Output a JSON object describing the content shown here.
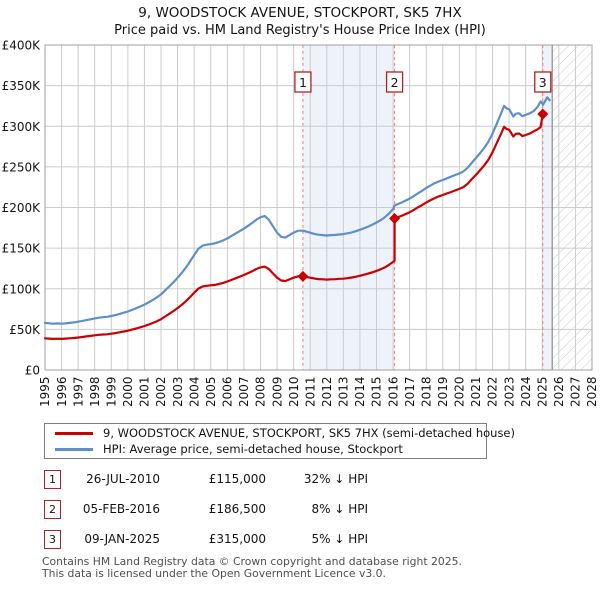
{
  "title": "9, WOODSTOCK AVENUE, STOCKPORT, SK5 7HX",
  "subtitle": "Price paid vs. HM Land Registry's House Price Index (HPI)",
  "chart_data": {
    "type": "line",
    "title": "9, WOODSTOCK AVENUE, STOCKPORT, SK5 7HX",
    "subtitle": "Price paid vs. HM Land Registry's House Price Index (HPI)",
    "x_axis": {
      "min": 1995,
      "max": 2028,
      "ticks": [
        1995,
        1996,
        1997,
        1998,
        1999,
        2000,
        2001,
        2002,
        2003,
        2004,
        2005,
        2006,
        2007,
        2008,
        2009,
        2010,
        2011,
        2012,
        2013,
        2014,
        2015,
        2016,
        2017,
        2018,
        2019,
        2020,
        2021,
        2022,
        2023,
        2024,
        2025,
        2026,
        2027,
        2028
      ]
    },
    "y_axis": {
      "min": 0,
      "max": 400,
      "step": 50,
      "unit": "GBP thousands",
      "tick_labels": [
        "£0",
        "£50K",
        "£100K",
        "£150K",
        "£200K",
        "£250K",
        "£300K",
        "£350K",
        "£400K"
      ]
    },
    "grid": true,
    "legend_position": "bottom",
    "colors": {
      "grid": "#cccccc",
      "frame": "#a0a0a0",
      "band": "#eef2fa",
      "marker_line": "#f08080",
      "hatch": "#cccccc",
      "hatch_edge": "#8a8a8a",
      "marker_box_border": "#b22222",
      "marker_fill": "#cc0000"
    },
    "series": [
      {
        "name": "9, WOODSTOCK AVENUE, STOCKPORT, SK5 7HX (semi-detached house)",
        "color": "#cc0000",
        "points": [
          [
            1995,
            39
          ],
          [
            1995.25,
            38.7
          ],
          [
            1995.5,
            38.3
          ],
          [
            1995.75,
            38.5
          ],
          [
            1996,
            38.3
          ],
          [
            1996.25,
            38.6
          ],
          [
            1996.5,
            39
          ],
          [
            1996.75,
            39.4
          ],
          [
            1997,
            40
          ],
          [
            1997.25,
            40.6
          ],
          [
            1997.5,
            41.3
          ],
          [
            1997.75,
            42
          ],
          [
            1998,
            42.7
          ],
          [
            1998.25,
            43.3
          ],
          [
            1998.5,
            43.7
          ],
          [
            1998.75,
            44
          ],
          [
            1999,
            44.7
          ],
          [
            1999.25,
            45.4
          ],
          [
            1999.5,
            46.4
          ],
          [
            1999.75,
            47.4
          ],
          [
            2000,
            48.4
          ],
          [
            2000.25,
            49.7
          ],
          [
            2000.5,
            51.1
          ],
          [
            2000.75,
            52.6
          ],
          [
            2001,
            54.1
          ],
          [
            2001.25,
            55.9
          ],
          [
            2001.5,
            57.9
          ],
          [
            2001.75,
            60.1
          ],
          [
            2002,
            62.5
          ],
          [
            2002.25,
            65.9
          ],
          [
            2002.5,
            69.2
          ],
          [
            2002.75,
            72.6
          ],
          [
            2003,
            76.3
          ],
          [
            2003.25,
            80.3
          ],
          [
            2003.5,
            84.7
          ],
          [
            2003.75,
            89.7
          ],
          [
            2004,
            95.1
          ],
          [
            2004.25,
            100.1
          ],
          [
            2004.5,
            102.8
          ],
          [
            2004.75,
            103.6
          ],
          [
            2005,
            104.2
          ],
          [
            2005.25,
            104.8
          ],
          [
            2005.5,
            105.8
          ],
          [
            2005.75,
            107.2
          ],
          [
            2006,
            108.9
          ],
          [
            2006.25,
            110.9
          ],
          [
            2006.5,
            112.9
          ],
          [
            2006.75,
            114.9
          ],
          [
            2007,
            116.9
          ],
          [
            2007.25,
            119.3
          ],
          [
            2007.5,
            121.6
          ],
          [
            2007.75,
            124.3
          ],
          [
            2008,
            126.3
          ],
          [
            2008.25,
            127.3
          ],
          [
            2008.5,
            124.3
          ],
          [
            2008.75,
            118.9
          ],
          [
            2009,
            113.6
          ],
          [
            2009.25,
            110.2
          ],
          [
            2009.5,
            109.5
          ],
          [
            2009.75,
            111.5
          ],
          [
            2010,
            113.6
          ],
          [
            2010.25,
            115.2
          ],
          [
            2010.56,
            115.3
          ],
          [
            2010.75,
            114.6
          ],
          [
            2011,
            113.6
          ],
          [
            2011.25,
            112.6
          ],
          [
            2011.5,
            111.9
          ],
          [
            2011.75,
            111.6
          ],
          [
            2012,
            111.2
          ],
          [
            2012.25,
            111.6
          ],
          [
            2012.5,
            111.8
          ],
          [
            2012.75,
            112.2
          ],
          [
            2013,
            112.4
          ],
          [
            2013.25,
            113
          ],
          [
            2013.5,
            113.8
          ],
          [
            2013.75,
            114.8
          ],
          [
            2014,
            115.9
          ],
          [
            2014.25,
            117.3
          ],
          [
            2014.5,
            118.6
          ],
          [
            2014.75,
            120.3
          ],
          [
            2015,
            122
          ],
          [
            2015.25,
            124
          ],
          [
            2015.5,
            126.3
          ],
          [
            2015.75,
            129.4
          ],
          [
            2016,
            133.1
          ],
          [
            2016.09,
            134.7
          ],
          [
            2016.09,
            186.5
          ],
          [
            2016.25,
            187.8
          ],
          [
            2016.5,
            189.6
          ],
          [
            2016.75,
            191.9
          ],
          [
            2017,
            194.2
          ],
          [
            2017.25,
            197
          ],
          [
            2017.5,
            200.2
          ],
          [
            2017.75,
            203
          ],
          [
            2018,
            206.2
          ],
          [
            2018.25,
            209
          ],
          [
            2018.5,
            211.5
          ],
          [
            2018.75,
            213.6
          ],
          [
            2019,
            215.4
          ],
          [
            2019.25,
            217.3
          ],
          [
            2019.5,
            219.1
          ],
          [
            2019.75,
            221
          ],
          [
            2020,
            222.9
          ],
          [
            2020.25,
            225.2
          ],
          [
            2020.5,
            229.3
          ],
          [
            2020.75,
            234.9
          ],
          [
            2021,
            240.4
          ],
          [
            2021.25,
            245.9
          ],
          [
            2021.5,
            251.9
          ],
          [
            2021.75,
            258.8
          ],
          [
            2022,
            268
          ],
          [
            2022.25,
            279.1
          ],
          [
            2022.5,
            290.1
          ],
          [
            2022.7,
            299.3
          ],
          [
            2022.85,
            296.6
          ],
          [
            2023,
            295.7
          ],
          [
            2023.25,
            287.4
          ],
          [
            2023.4,
            290.6
          ],
          [
            2023.6,
            291.1
          ],
          [
            2023.8,
            287.9
          ],
          [
            2024,
            289.2
          ],
          [
            2024.25,
            291.1
          ],
          [
            2024.5,
            293.9
          ],
          [
            2024.7,
            296
          ],
          [
            2024.9,
            299
          ],
          [
            2025.03,
            315
          ],
          [
            2025.2,
            316.5
          ]
        ]
      },
      {
        "name": "HPI: Average price, semi-detached house, Stockport",
        "color": "#5e8fc9",
        "points": [
          [
            1995,
            58
          ],
          [
            1995.25,
            57.5
          ],
          [
            1995.5,
            57
          ],
          [
            1995.75,
            57.3
          ],
          [
            1996,
            57
          ],
          [
            1996.25,
            57.4
          ],
          [
            1996.5,
            58
          ],
          [
            1996.75,
            58.6
          ],
          [
            1997,
            59.5
          ],
          [
            1997.25,
            60.4
          ],
          [
            1997.5,
            61.4
          ],
          [
            1997.75,
            62.4
          ],
          [
            1998,
            63.5
          ],
          [
            1998.25,
            64.4
          ],
          [
            1998.5,
            65
          ],
          [
            1998.75,
            65.5
          ],
          [
            1999,
            66.5
          ],
          [
            1999.25,
            67.6
          ],
          [
            1999.5,
            69
          ],
          [
            1999.75,
            70.5
          ],
          [
            2000,
            72
          ],
          [
            2000.25,
            74
          ],
          [
            2000.5,
            76
          ],
          [
            2000.75,
            78.2
          ],
          [
            2001,
            80.5
          ],
          [
            2001.25,
            83.2
          ],
          [
            2001.5,
            86.2
          ],
          [
            2001.75,
            89.5
          ],
          [
            2002,
            93
          ],
          [
            2002.25,
            98
          ],
          [
            2002.5,
            103
          ],
          [
            2002.75,
            108
          ],
          [
            2003,
            113.5
          ],
          [
            2003.25,
            119.5
          ],
          [
            2003.5,
            126
          ],
          [
            2003.75,
            133.5
          ],
          [
            2004,
            141.5
          ],
          [
            2004.25,
            149
          ],
          [
            2004.5,
            153
          ],
          [
            2004.75,
            154.2
          ],
          [
            2005,
            155
          ],
          [
            2005.25,
            156
          ],
          [
            2005.5,
            157.5
          ],
          [
            2005.75,
            159.5
          ],
          [
            2006,
            162
          ],
          [
            2006.25,
            165
          ],
          [
            2006.5,
            168
          ],
          [
            2006.75,
            171
          ],
          [
            2007,
            174
          ],
          [
            2007.25,
            177.5
          ],
          [
            2007.5,
            181
          ],
          [
            2007.75,
            185
          ],
          [
            2008,
            188
          ],
          [
            2008.25,
            189.5
          ],
          [
            2008.5,
            185
          ],
          [
            2008.75,
            177
          ],
          [
            2009,
            169
          ],
          [
            2009.25,
            164
          ],
          [
            2009.5,
            163
          ],
          [
            2009.75,
            166
          ],
          [
            2010,
            169
          ],
          [
            2010.25,
            171.5
          ],
          [
            2010.56,
            171.5
          ],
          [
            2010.75,
            170.5
          ],
          [
            2011,
            169
          ],
          [
            2011.25,
            167.5
          ],
          [
            2011.5,
            166.5
          ],
          [
            2011.75,
            166
          ],
          [
            2012,
            165.5
          ],
          [
            2012.25,
            166
          ],
          [
            2012.5,
            166.3
          ],
          [
            2012.75,
            166.8
          ],
          [
            2013,
            167.3
          ],
          [
            2013.25,
            168.2
          ],
          [
            2013.5,
            169.3
          ],
          [
            2013.75,
            170.8
          ],
          [
            2014,
            172.5
          ],
          [
            2014.25,
            174.5
          ],
          [
            2014.5,
            176.5
          ],
          [
            2014.75,
            179
          ],
          [
            2015,
            181.5
          ],
          [
            2015.25,
            184.5
          ],
          [
            2015.5,
            188
          ],
          [
            2015.75,
            192.5
          ],
          [
            2016,
            198
          ],
          [
            2016.09,
            202.5
          ],
          [
            2016.25,
            204
          ],
          [
            2016.5,
            206
          ],
          [
            2016.75,
            208.5
          ],
          [
            2017,
            211
          ],
          [
            2017.25,
            214
          ],
          [
            2017.5,
            217.5
          ],
          [
            2017.75,
            220.5
          ],
          [
            2018,
            224
          ],
          [
            2018.25,
            227
          ],
          [
            2018.5,
            229.8
          ],
          [
            2018.75,
            232
          ],
          [
            2019,
            234
          ],
          [
            2019.25,
            236
          ],
          [
            2019.5,
            238
          ],
          [
            2019.75,
            240
          ],
          [
            2020,
            242
          ],
          [
            2020.25,
            244.5
          ],
          [
            2020.5,
            249
          ],
          [
            2020.75,
            255
          ],
          [
            2021,
            261
          ],
          [
            2021.25,
            267
          ],
          [
            2021.5,
            273.5
          ],
          [
            2021.75,
            281
          ],
          [
            2022,
            291
          ],
          [
            2022.25,
            303
          ],
          [
            2022.5,
            315
          ],
          [
            2022.7,
            325
          ],
          [
            2022.85,
            322
          ],
          [
            2023,
            321
          ],
          [
            2023.25,
            312
          ],
          [
            2023.4,
            315.5
          ],
          [
            2023.6,
            316
          ],
          [
            2023.8,
            312.5
          ],
          [
            2024,
            314
          ],
          [
            2024.25,
            316
          ],
          [
            2024.5,
            319
          ],
          [
            2024.7,
            323.5
          ],
          [
            2024.9,
            330.5
          ],
          [
            2025.05,
            326.5
          ],
          [
            2025.3,
            335.5
          ],
          [
            2025.45,
            332
          ]
        ]
      }
    ],
    "markers": [
      {
        "label": "1",
        "x": 2010.56,
        "y": 115.3
      },
      {
        "label": "2",
        "x": 2016.09,
        "y": 186.5
      },
      {
        "label": "3",
        "x": 2025.03,
        "y": 315
      }
    ],
    "shaded_bands": [
      {
        "from": 2010.56,
        "to": 2016.09
      },
      {
        "from": 2025.03,
        "to": 2025.6
      }
    ],
    "hatch_band": {
      "from": 2025.6,
      "to": 2028
    }
  },
  "legend": {
    "items": [
      {
        "label": "9, WOODSTOCK AVENUE, STOCKPORT, SK5 7HX (semi-detached house)",
        "color": "#cc0000"
      },
      {
        "label": "HPI: Average price, semi-detached house, Stockport",
        "color": "#5e8fc9"
      }
    ]
  },
  "transactions": [
    {
      "num": "1",
      "date": "26-JUL-2010",
      "price": "£115,000",
      "vs_hpi": "32% ↓ HPI"
    },
    {
      "num": "2",
      "date": "05-FEB-2016",
      "price": "£186,500",
      "vs_hpi": "8% ↓ HPI"
    },
    {
      "num": "3",
      "date": "09-JAN-2025",
      "price": "£315,000",
      "vs_hpi": "5% ↓ HPI"
    }
  ],
  "footer": {
    "line1": "Contains HM Land Registry data © Crown copyright and database right 2025.",
    "line2": "This data is licensed under the Open Government Licence v3.0."
  }
}
